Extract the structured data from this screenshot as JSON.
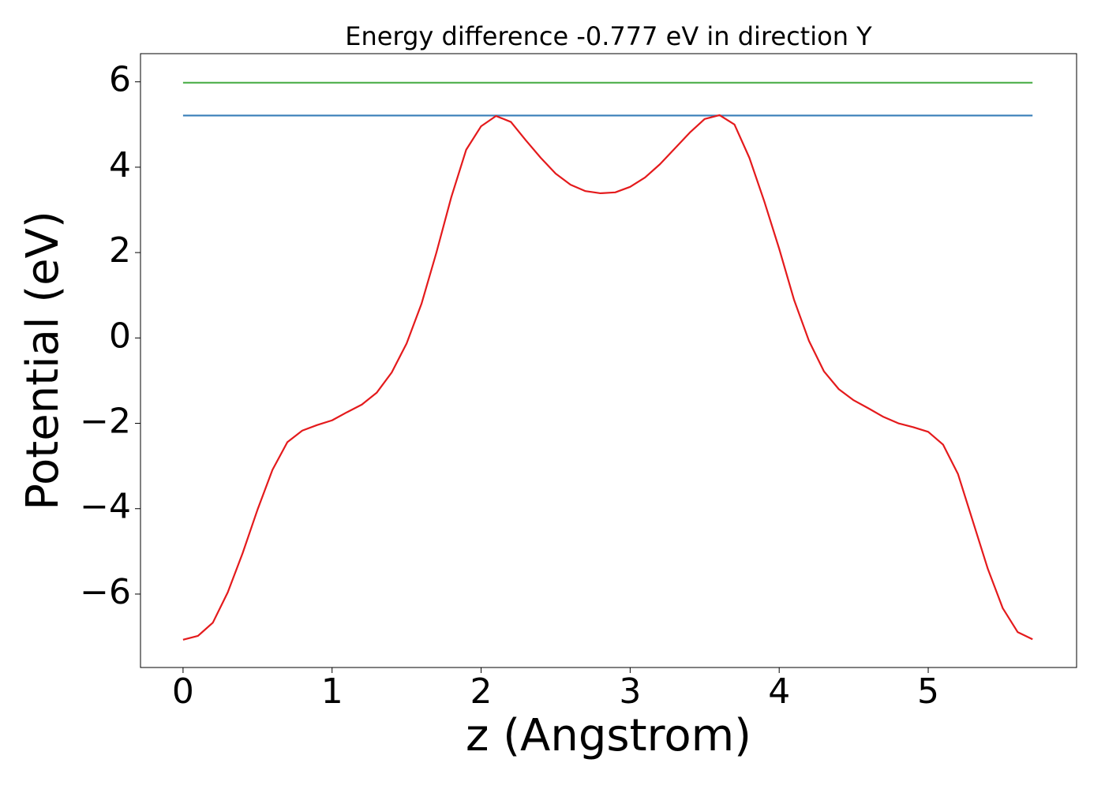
{
  "chart_data": {
    "type": "line",
    "title": "Energy difference -0.777 eV in direction Y",
    "x_label": "z (Angstrom)",
    "y_label": "Potential (eV)",
    "x": [
      0,
      0.1,
      0.2,
      0.3,
      0.4,
      0.5,
      0.6,
      0.7,
      0.8,
      0.9,
      1.0,
      1.1,
      1.2,
      1.3,
      1.4,
      1.5,
      1.6,
      1.7,
      1.8,
      1.9,
      2.0,
      2.1,
      2.2,
      2.3,
      2.4,
      2.5,
      2.6,
      2.7,
      2.8,
      2.9,
      3.0,
      3.1,
      3.2,
      3.3,
      3.4,
      3.5,
      3.6,
      3.7,
      3.8,
      3.9,
      4.0,
      4.1,
      4.2,
      4.3,
      4.4,
      4.5,
      4.6,
      4.7,
      4.8,
      4.9,
      5.0,
      5.1,
      5.2,
      5.3,
      5.4,
      5.5,
      5.6,
      5.7
    ],
    "series": [
      {
        "color": "#4daf4a",
        "values": [
          5.98,
          5.98,
          5.98,
          5.98,
          5.98,
          5.98,
          5.98,
          5.98,
          5.98,
          5.98,
          5.98,
          5.98,
          5.98,
          5.98,
          5.98,
          5.98,
          5.98,
          5.98,
          5.98,
          5.98,
          5.98,
          5.98,
          5.98,
          5.98,
          5.98,
          5.98,
          5.98,
          5.98,
          5.98,
          5.98,
          5.98,
          5.98,
          5.98,
          5.98,
          5.98,
          5.98,
          5.98,
          5.98,
          5.98,
          5.98,
          5.98,
          5.98,
          5.98,
          5.98,
          5.98,
          5.98,
          5.98,
          5.98,
          5.98,
          5.98,
          5.98,
          5.98,
          5.98,
          5.98,
          5.98,
          5.98,
          5.98,
          5.98
        ]
      },
      {
        "color": "#377eb8",
        "values": [
          5.21,
          5.21,
          5.21,
          5.21,
          5.21,
          5.21,
          5.21,
          5.21,
          5.21,
          5.21,
          5.21,
          5.21,
          5.21,
          5.21,
          5.21,
          5.21,
          5.21,
          5.21,
          5.21,
          5.21,
          5.21,
          5.21,
          5.21,
          5.21,
          5.21,
          5.21,
          5.21,
          5.21,
          5.21,
          5.21,
          5.21,
          5.21,
          5.21,
          5.21,
          5.21,
          5.21,
          5.21,
          5.21,
          5.21,
          5.21,
          5.21,
          5.21,
          5.21,
          5.21,
          5.21,
          5.21,
          5.21,
          5.21,
          5.21,
          5.21,
          5.21,
          5.21,
          5.21,
          5.21,
          5.21,
          5.21,
          5.21,
          5.21
        ]
      },
      {
        "color": "#e41a1c",
        "values": [
          -7.07,
          -6.98,
          -6.67,
          -5.96,
          -5.04,
          -4.02,
          -3.09,
          -2.44,
          -2.17,
          -2.04,
          -1.93,
          -1.74,
          -1.56,
          -1.28,
          -0.81,
          -0.13,
          0.8,
          2.0,
          3.3,
          4.41,
          4.96,
          5.2,
          5.06,
          4.63,
          4.22,
          3.85,
          3.59,
          3.44,
          3.39,
          3.41,
          3.54,
          3.76,
          4.07,
          4.44,
          4.81,
          5.13,
          5.22,
          5.0,
          4.22,
          3.2,
          2.09,
          0.89,
          -0.07,
          -0.78,
          -1.2,
          -1.46,
          -1.65,
          -1.85,
          -2.0,
          -2.09,
          -2.2,
          -2.5,
          -3.19,
          -4.3,
          -5.41,
          -6.33,
          -6.89,
          -7.06
        ]
      }
    ],
    "xlim": [
      -0.2855,
      5.9955
    ],
    "ylim": [
      -7.72,
      6.66
    ],
    "xticks": [
      0,
      1,
      2,
      3,
      4,
      5
    ],
    "yticks": [
      {
        "value": -6,
        "label": "−6"
      },
      {
        "value": -4,
        "label": "−4"
      },
      {
        "value": -2,
        "label": "−2"
      },
      0,
      2,
      4,
      6
    ],
    "grid": false
  }
}
